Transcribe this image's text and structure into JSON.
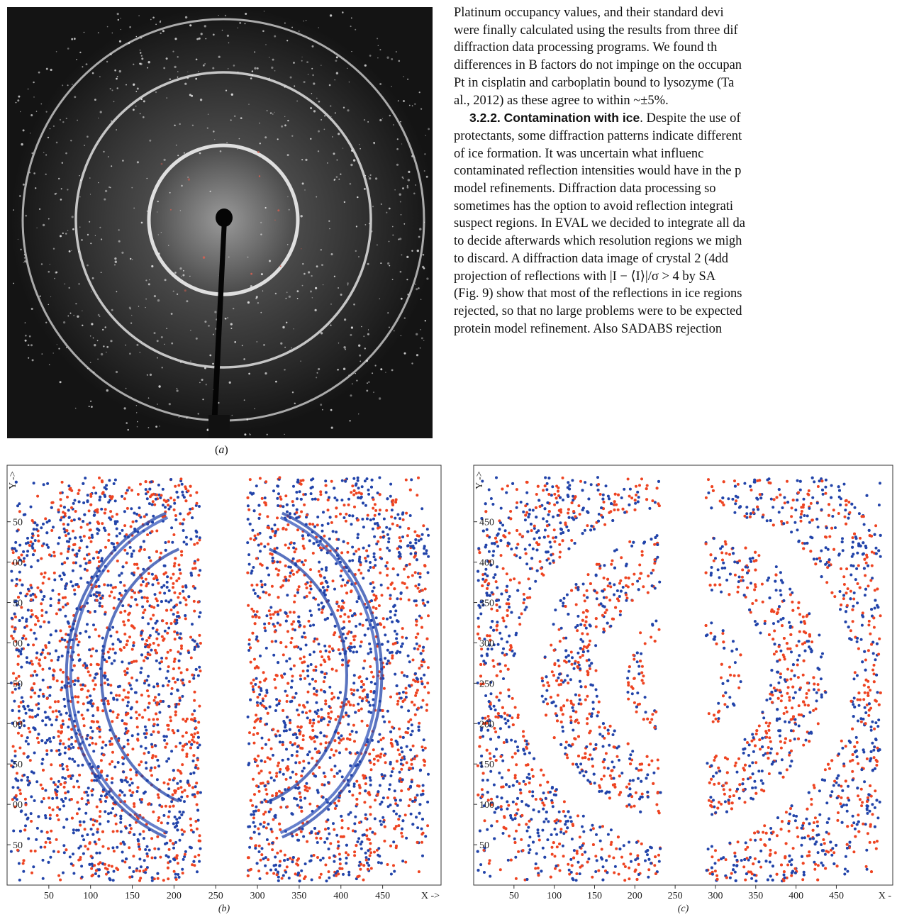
{
  "panel_a": {
    "caption": "a"
  },
  "text": {
    "lines_p1": [
      "Platinum occupancy values, and their standard devi",
      "were finally calculated using the results from three dif",
      "diffraction data processing programs. We found th",
      "differences in B factors do not impinge on the occupan",
      "Pt in cisplatin and carboplatin bound to lysozyme (Ta",
      "al., 2012) as these agree to within ~±5%."
    ],
    "section_heading": "3.2.2. Contamination with ice",
    "lines_p2": [
      ". Despite the use of",
      "protectants, some diffraction patterns indicate different",
      "of ice formation. It was uncertain what influenc",
      "contaminated reflection intensities would have in the p",
      "model refinements. Diffraction data processing so",
      "sometimes has the option to avoid reflection integrati",
      "suspect regions. In EVAL we decided to integrate all da",
      "to decide afterwards which resolution regions we migh",
      "to discard. A diffraction data image of crystal 2 (4dd",
      "projection of reflections with |I − ⟨I⟩|/σ > 4 by SA",
      "(Fig. 9) show that most of the reflections in ice regions",
      "rejected, so that no large problems were to be expected",
      "protein model refinement. Also SADABS rejection"
    ]
  },
  "colors": {
    "series_red": "#ee4422",
    "series_blue": "#2244aa"
  },
  "chart_data": [
    {
      "type": "scatter",
      "caption": "b",
      "xlabel": "X ->",
      "ylabel": "Y ->",
      "x_ticks": [
        "50",
        "100",
        "150",
        "200",
        "250",
        "300",
        "350",
        "400",
        "450"
      ],
      "y_ticks": [
        "50",
        "00",
        "50",
        "00",
        "50",
        "00",
        "50",
        "00",
        "50"
      ],
      "xlim": [
        0,
        520
      ],
      "ylim": [
        0,
        520
      ],
      "series": [
        {
          "color": "#ee4422",
          "points": []
        },
        {
          "color": "#2244aa",
          "points": []
        }
      ]
    },
    {
      "type": "scatter",
      "caption": "c",
      "xlabel": "X -",
      "ylabel": "Y ->",
      "x_ticks": [
        "50",
        "100",
        "150",
        "200",
        "250",
        "300",
        "350",
        "400",
        "450"
      ],
      "y_ticks": [
        "50",
        "100",
        "150",
        "200",
        "250",
        "300",
        "350",
        "400",
        "450"
      ],
      "xlim": [
        0,
        520
      ],
      "ylim": [
        0,
        520
      ],
      "series": [
        {
          "color": "#ee4422",
          "points": []
        },
        {
          "color": "#2244aa",
          "points": []
        }
      ]
    }
  ]
}
